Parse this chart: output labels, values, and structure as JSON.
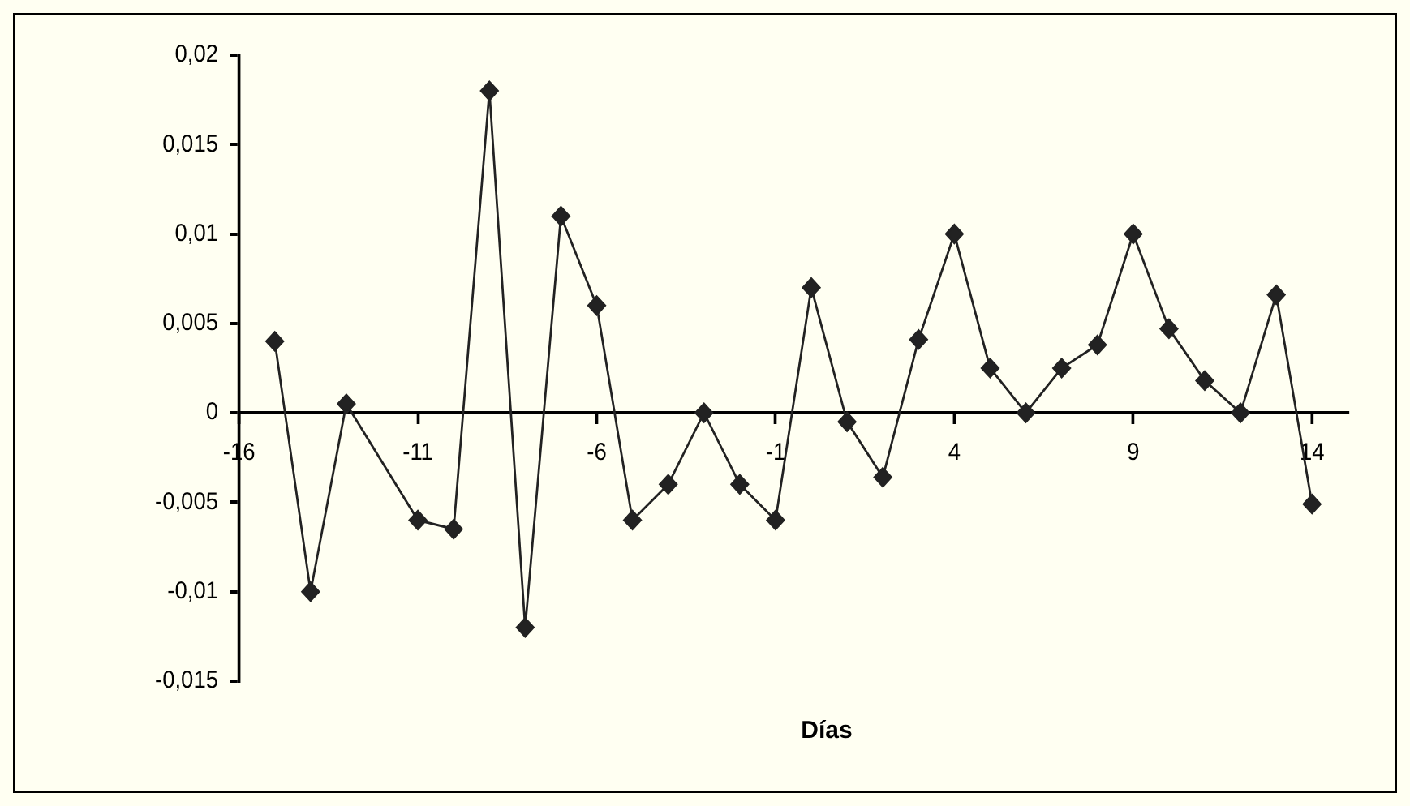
{
  "chart_data": {
    "type": "line",
    "xlabel": "Días",
    "x": [
      -15,
      -14,
      -13,
      -11,
      -10,
      -9,
      -8,
      -7,
      -6,
      -5,
      -4,
      -3,
      -2,
      -1,
      0,
      1,
      2,
      3,
      4,
      5,
      6,
      7,
      8,
      9,
      10,
      11,
      12,
      13,
      14
    ],
    "series": [
      {
        "color": "#222222",
        "values": [
          0.004,
          -0.01,
          0.0005,
          -0.006,
          -0.0065,
          0.018,
          -0.012,
          0.011,
          0.006,
          -0.006,
          -0.004,
          0,
          -0.004,
          -0.006,
          0.007,
          -0.0005,
          -0.0036,
          0.0041,
          0.01,
          0.0025,
          0,
          0.0025,
          0.0038,
          0.01,
          0.0047,
          0.0018,
          0,
          0.0066,
          -0.0051
        ]
      }
    ],
    "xlim": [
      -16,
      15
    ],
    "xticks": [
      -16,
      -11,
      -6,
      -1,
      4,
      9,
      14
    ],
    "ylim": [
      -0.015,
      0.02
    ],
    "yticks": [
      {
        "value": -0.015,
        "label": "-0,015"
      },
      {
        "value": -0.01,
        "label": "-0,01"
      },
      {
        "value": -0.005,
        "label": "-0,005"
      },
      0,
      {
        "value": 0.005,
        "label": "0,005"
      },
      {
        "value": 0.01,
        "label": "0,01"
      },
      {
        "value": 0.015,
        "label": "0,015"
      },
      {
        "value": 0.02,
        "label": "0,02"
      }
    ],
    "grid": false,
    "legend": false,
    "marker": "diamond",
    "line_style": "solid"
  }
}
